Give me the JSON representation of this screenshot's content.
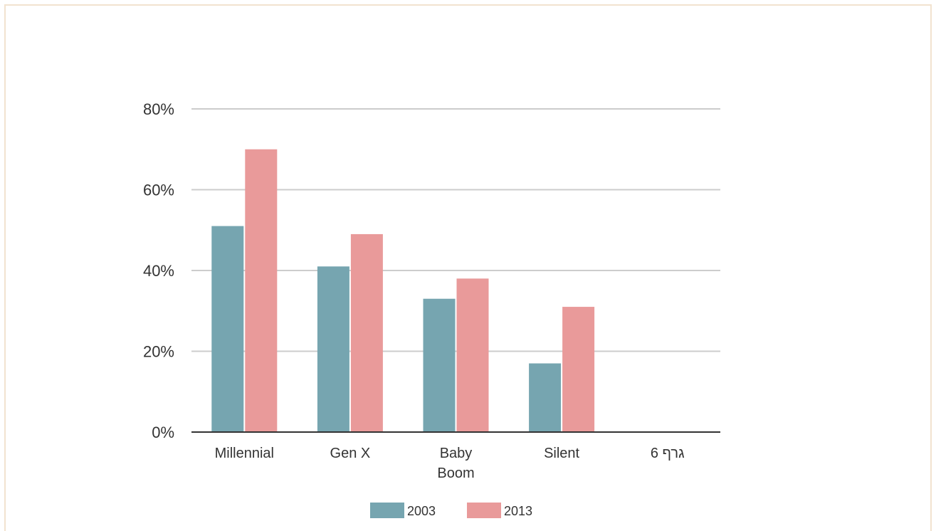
{
  "chart_data": {
    "type": "bar",
    "categories": [
      "Millennial",
      "Gen X",
      "Baby Boom",
      "Silent",
      "גרף 6"
    ],
    "category_lines": [
      [
        "Millennial"
      ],
      [
        "Gen X"
      ],
      [
        "Baby",
        "Boom"
      ],
      [
        "Silent"
      ],
      [
        "גרף 6"
      ]
    ],
    "series": [
      {
        "name": "2003",
        "values": [
          51,
          41,
          33,
          17,
          null
        ]
      },
      {
        "name": "2013",
        "values": [
          70,
          49,
          38,
          31,
          null
        ]
      }
    ],
    "ylim": [
      0,
      80
    ],
    "yticks": [
      0,
      20,
      40,
      60,
      80
    ],
    "ytick_labels": [
      "0%",
      "20%",
      "40%",
      "60%",
      "80%"
    ],
    "grid": true,
    "legend_position": "bottom",
    "colors": {
      "series_2003": "#76a5b0",
      "series_2013": "#e99a9a",
      "grid": "#cccccc",
      "axis": "#333333",
      "frame": "#f2e3cf"
    }
  }
}
